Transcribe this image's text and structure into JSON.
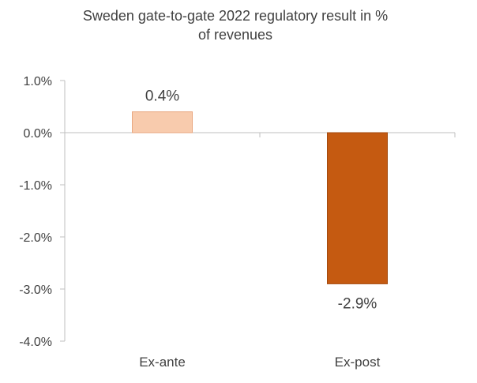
{
  "chart_data": {
    "type": "bar",
    "title": "Sweden gate-to-gate 2022 regulatory result in % of revenues",
    "title_lines": [
      "Sweden gate-to-gate 2022 regulatory result in %",
      "of revenues"
    ],
    "categories": [
      "Ex-ante",
      "Ex-post"
    ],
    "values": [
      0.4,
      -2.9
    ],
    "data_labels": [
      "0.4%",
      "-2.9%"
    ],
    "ylim": [
      -4.0,
      1.0
    ],
    "yticks": [
      1.0,
      0.0,
      -1.0,
      -2.0,
      -3.0,
      -4.0
    ],
    "ytick_labels": [
      "1.0%",
      "0.0%",
      "-1.0%",
      "-2.0%",
      "-3.0%",
      "-4.0%"
    ],
    "xlabel": "",
    "ylabel": "",
    "grid": false,
    "bar_colors": [
      "#F8CBAD",
      "#C55A11"
    ],
    "bar_edge_colors": [
      "#E9A77F",
      "#A34A0E"
    ]
  }
}
